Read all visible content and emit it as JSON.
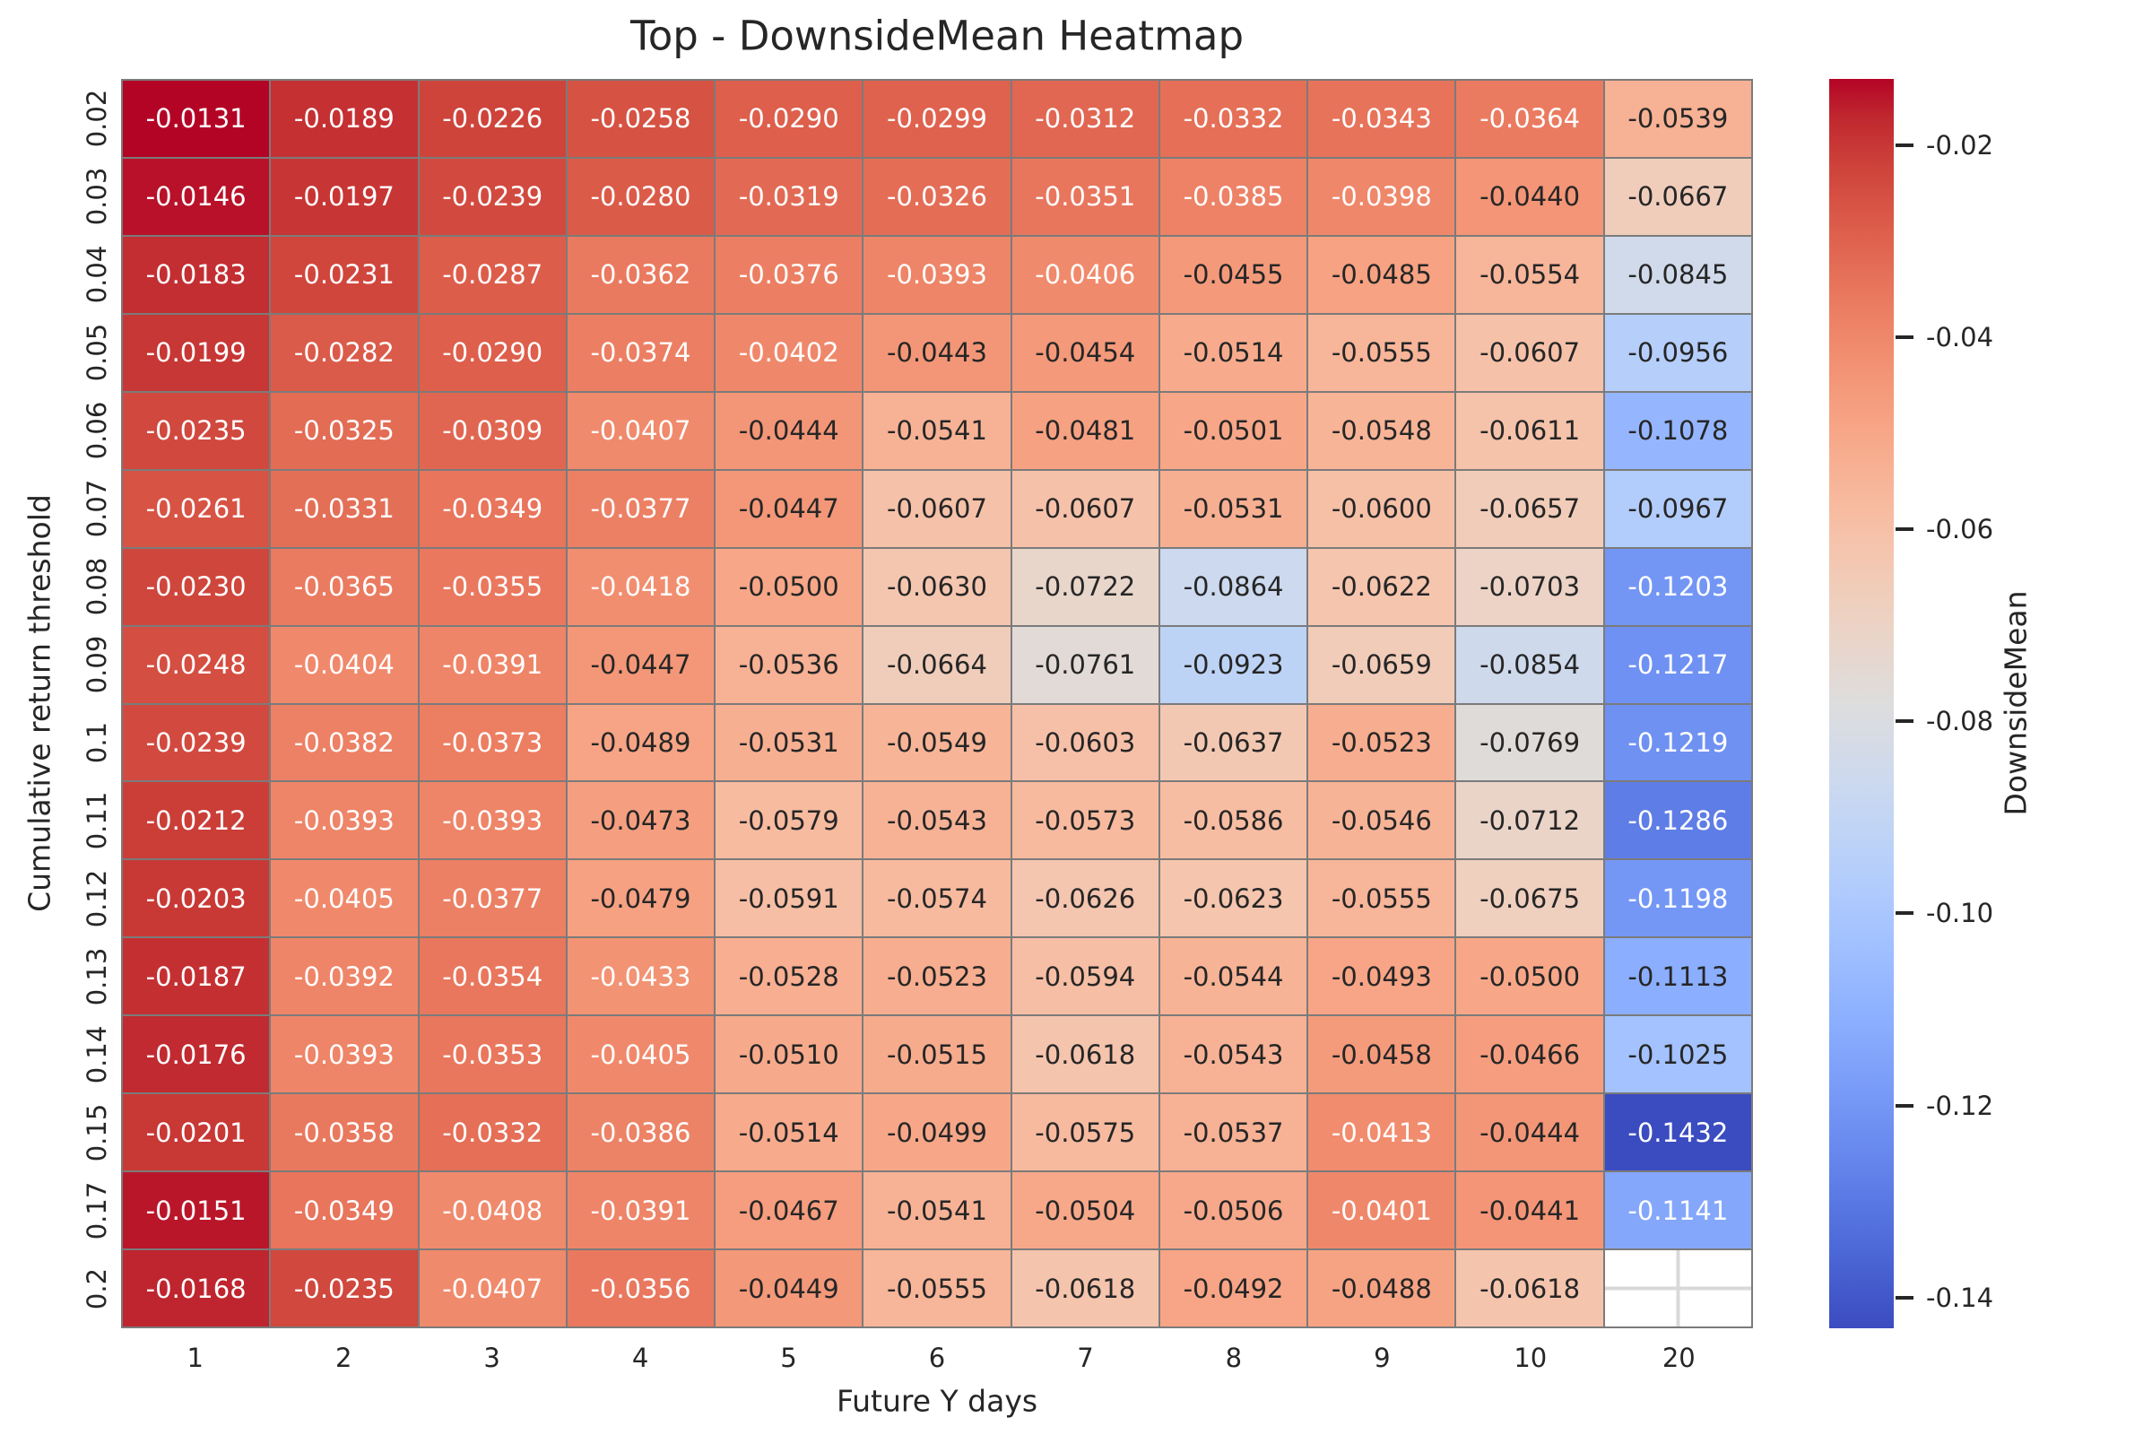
{
  "chart_data": {
    "type": "heatmap",
    "title": "Top - DownsideMean Heatmap",
    "xlabel": "Future Y days",
    "ylabel": "Cumulative return threshold",
    "x_categories": [
      "1",
      "2",
      "3",
      "4",
      "5",
      "6",
      "7",
      "8",
      "9",
      "10",
      "20"
    ],
    "y_categories": [
      "0.02",
      "0.03",
      "0.04",
      "0.05",
      "0.06",
      "0.07",
      "0.08",
      "0.09",
      "0.1",
      "0.11",
      "0.12",
      "0.13",
      "0.14",
      "0.15",
      "0.17",
      "0.2"
    ],
    "colormap": "coolwarm",
    "vmin": -0.1432,
    "vmax": -0.0131,
    "values": [
      [
        -0.0131,
        -0.0189,
        -0.0226,
        -0.0258,
        -0.029,
        -0.0299,
        -0.0312,
        -0.0332,
        -0.0343,
        -0.0364,
        -0.0539
      ],
      [
        -0.0146,
        -0.0197,
        -0.0239,
        -0.028,
        -0.0319,
        -0.0326,
        -0.0351,
        -0.0385,
        -0.0398,
        -0.044,
        -0.0667
      ],
      [
        -0.0183,
        -0.0231,
        -0.0287,
        -0.0362,
        -0.0376,
        -0.0393,
        -0.0406,
        -0.0455,
        -0.0485,
        -0.0554,
        -0.0845
      ],
      [
        -0.0199,
        -0.0282,
        -0.029,
        -0.0374,
        -0.0402,
        -0.0443,
        -0.0454,
        -0.0514,
        -0.0555,
        -0.0607,
        -0.0956
      ],
      [
        -0.0235,
        -0.0325,
        -0.0309,
        -0.0407,
        -0.0444,
        -0.0541,
        -0.0481,
        -0.0501,
        -0.0548,
        -0.0611,
        -0.1078
      ],
      [
        -0.0261,
        -0.0331,
        -0.0349,
        -0.0377,
        -0.0447,
        -0.0607,
        -0.0607,
        -0.0531,
        -0.06,
        -0.0657,
        -0.0967
      ],
      [
        -0.023,
        -0.0365,
        -0.0355,
        -0.0418,
        -0.05,
        -0.063,
        -0.0722,
        -0.0864,
        -0.0622,
        -0.0703,
        -0.1203
      ],
      [
        -0.0248,
        -0.0404,
        -0.0391,
        -0.0447,
        -0.0536,
        -0.0664,
        -0.0761,
        -0.0923,
        -0.0659,
        -0.0854,
        -0.1217
      ],
      [
        -0.0239,
        -0.0382,
        -0.0373,
        -0.0489,
        -0.0531,
        -0.0549,
        -0.0603,
        -0.0637,
        -0.0523,
        -0.0769,
        -0.1219
      ],
      [
        -0.0212,
        -0.0393,
        -0.0393,
        -0.0473,
        -0.0579,
        -0.0543,
        -0.0573,
        -0.0586,
        -0.0546,
        -0.0712,
        -0.1286
      ],
      [
        -0.0203,
        -0.0405,
        -0.0377,
        -0.0479,
        -0.0591,
        -0.0574,
        -0.0626,
        -0.0623,
        -0.0555,
        -0.0675,
        -0.1198
      ],
      [
        -0.0187,
        -0.0392,
        -0.0354,
        -0.0433,
        -0.0528,
        -0.0523,
        -0.0594,
        -0.0544,
        -0.0493,
        -0.05,
        -0.1113
      ],
      [
        -0.0176,
        -0.0393,
        -0.0353,
        -0.0405,
        -0.051,
        -0.0515,
        -0.0618,
        -0.0543,
        -0.0458,
        -0.0466,
        -0.1025
      ],
      [
        -0.0201,
        -0.0358,
        -0.0332,
        -0.0386,
        -0.0514,
        -0.0499,
        -0.0575,
        -0.0537,
        -0.0413,
        -0.0444,
        -0.1432
      ],
      [
        -0.0151,
        -0.0349,
        -0.0408,
        -0.0391,
        -0.0467,
        -0.0541,
        -0.0504,
        -0.0506,
        -0.0401,
        -0.0441,
        -0.1141
      ],
      [
        -0.0168,
        -0.0235,
        -0.0407,
        -0.0356,
        -0.0449,
        -0.0555,
        -0.0618,
        -0.0492,
        -0.0488,
        -0.0618,
        null
      ]
    ],
    "value_decimals": 4,
    "colorbar": {
      "label": "DownsideMean",
      "tick_labels": [
        "-0.02",
        "-0.04",
        "-0.06",
        "-0.08",
        "-0.10",
        "-0.12",
        "-0.14"
      ],
      "tick_values": [
        -0.02,
        -0.04,
        -0.06,
        -0.08,
        -0.1,
        -0.12,
        -0.14
      ],
      "position": "right"
    },
    "grid": "off",
    "legend": "colorbar"
  },
  "style": {
    "background": "#ffffff",
    "grid_line_color": "#7b7b7b",
    "text_color": "#262626",
    "annotation_light_text": "#ffffff",
    "annotation_dark_text": "#262626",
    "missing_cell_background": "#ffffff",
    "missing_cell_line_color": "#d9d9d9",
    "colormap_low_color": "#3b4cc0",
    "colormap_mid_color": "#dddddd",
    "colormap_high_color": "#b40426"
  }
}
